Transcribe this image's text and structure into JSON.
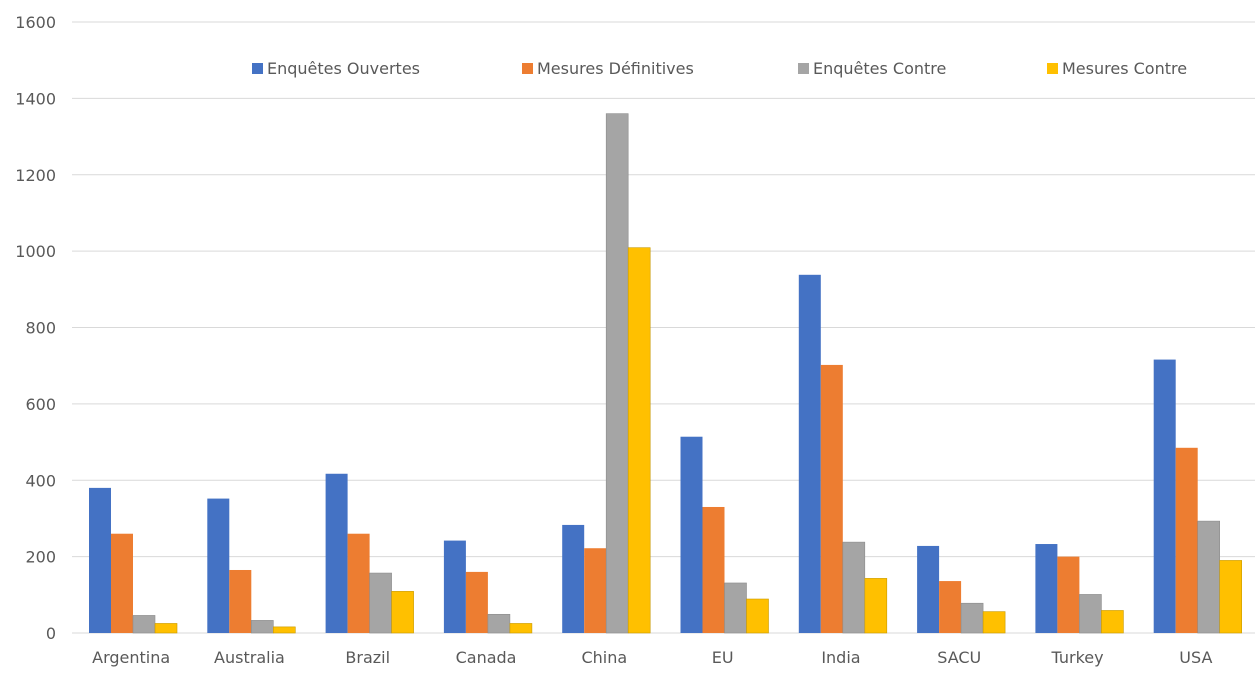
{
  "chart_data": {
    "type": "bar",
    "title": "",
    "xlabel": "",
    "ylabel": "",
    "ylim": [
      0,
      1600
    ],
    "yticks": [
      0,
      200,
      400,
      600,
      800,
      1000,
      1200,
      1400,
      1600
    ],
    "grid": true,
    "legend_position": "top",
    "categories": [
      "Argentina",
      "Australia",
      "Brazil",
      "Canada",
      "China",
      "EU",
      "India",
      "SACU",
      "Turkey",
      "USA"
    ],
    "series": [
      {
        "name": "Enquêtes Ouvertes",
        "color": "#4472C4",
        "values": [
          380,
          352,
          417,
          242,
          283,
          514,
          938,
          228,
          233,
          716
        ]
      },
      {
        "name": "Mesures Définitives",
        "color": "#ED7D31",
        "values": [
          260,
          165,
          260,
          160,
          222,
          330,
          702,
          136,
          200,
          485
        ]
      },
      {
        "name": "Enquêtes Contre",
        "color": "#A5A5A5",
        "values": [
          46,
          33,
          157,
          49,
          1360,
          131,
          238,
          78,
          101,
          293
        ]
      },
      {
        "name": "Mesures Contre",
        "color": "#FFC000",
        "values": [
          25,
          16,
          109,
          25,
          1009,
          89,
          143,
          56,
          59,
          190
        ]
      }
    ]
  }
}
